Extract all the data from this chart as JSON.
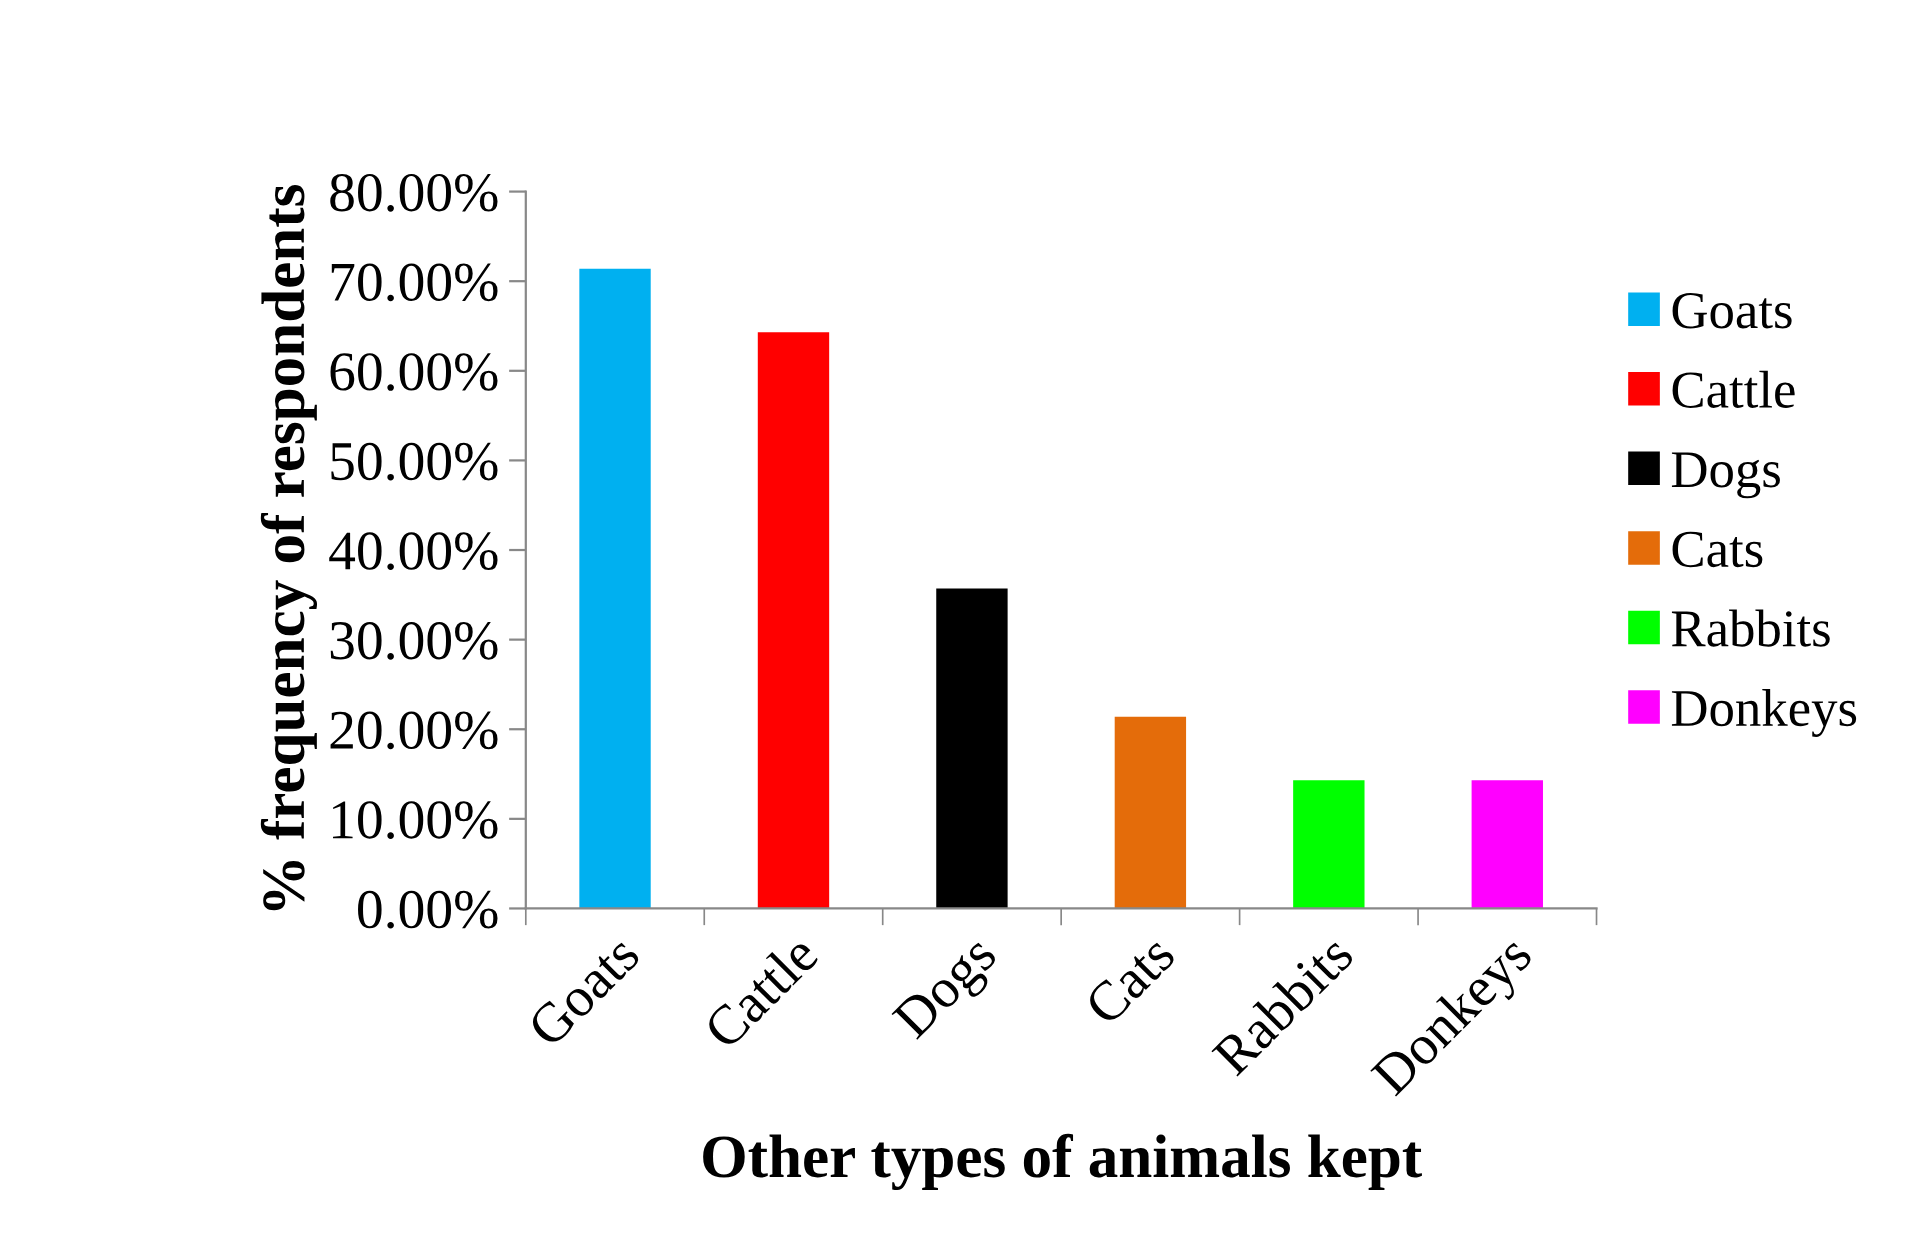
{
  "chart_data": {
    "type": "bar",
    "xlabel": "Other types of animals kept",
    "ylabel": "% frequency of respondents",
    "categories": [
      "Goats",
      "Cattle",
      "Dogs",
      "Cats",
      "Rabbits",
      "Donkeys"
    ],
    "stacked": true,
    "series": [
      {
        "name": "Goats",
        "color": "#00b0f0",
        "values": [
          71.4,
          null,
          null,
          null,
          null,
          null
        ]
      },
      {
        "name": "Cattle",
        "color": "#ff0000",
        "values": [
          null,
          64.3,
          null,
          null,
          null,
          null
        ]
      },
      {
        "name": "Dogs",
        "color": "#000000",
        "values": [
          null,
          null,
          35.7,
          null,
          null,
          null
        ]
      },
      {
        "name": "Cats",
        "color": "#e46c0a",
        "values": [
          null,
          null,
          null,
          21.4,
          null,
          null
        ]
      },
      {
        "name": "Rabbits",
        "color": "#00ff00",
        "values": [
          null,
          null,
          null,
          null,
          14.3,
          null
        ]
      },
      {
        "name": "Donkeys",
        "color": "#ff00ff",
        "values": [
          null,
          null,
          null,
          null,
          null,
          14.3
        ]
      }
    ],
    "ylim": [
      0,
      80
    ],
    "yticks": [
      {
        "value": 0,
        "label": "0.00%"
      },
      {
        "value": 10,
        "label": "10.00%"
      },
      {
        "value": 20,
        "label": "20.00%"
      },
      {
        "value": 30,
        "label": "30.00%"
      },
      {
        "value": 40,
        "label": "40.00%"
      },
      {
        "value": 50,
        "label": "50.00%"
      },
      {
        "value": 60,
        "label": "60.00%"
      },
      {
        "value": 70,
        "label": "70.00%"
      },
      {
        "value": 80,
        "label": "80.00%"
      }
    ],
    "legend": "right"
  }
}
